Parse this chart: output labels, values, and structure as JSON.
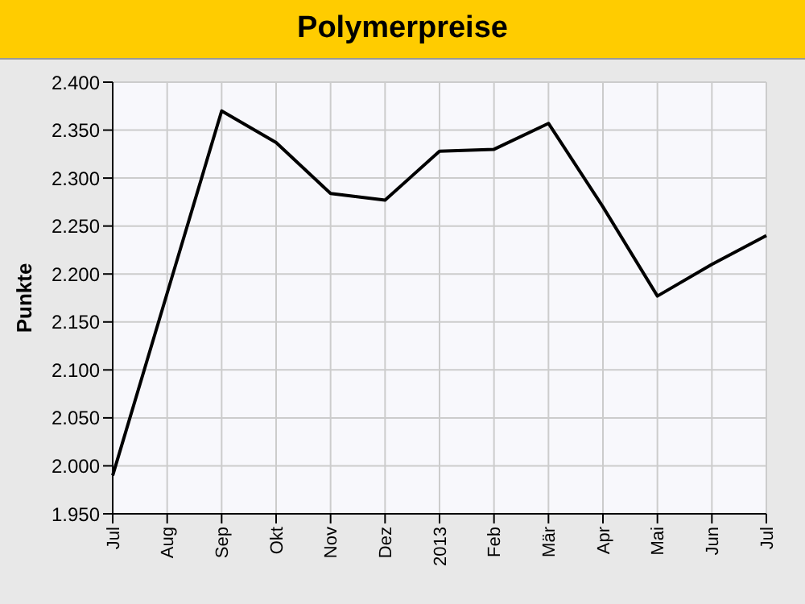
{
  "chart_data": {
    "type": "line",
    "title": "Polymerpreise",
    "ylabel": "Punkte",
    "categories": [
      "Jul",
      "Aug",
      "Sep",
      "Okt",
      "Nov",
      "Dez",
      "2013",
      "Feb",
      "Mär",
      "Apr",
      "Mai",
      "Jun",
      "Jul"
    ],
    "series": [
      {
        "color": "#000000",
        "values": [
          1990,
          2180,
          2370,
          2337,
          2284,
          2277,
          2328,
          2330,
          2357,
          2270,
          2177,
          2210,
          2240
        ]
      }
    ],
    "ylim": [
      1950,
      2400
    ],
    "yticks": [
      {
        "value": 1950,
        "label": "1.950"
      },
      {
        "value": 2000,
        "label": "2.000"
      },
      {
        "value": 2050,
        "label": "2.050"
      },
      {
        "value": 2100,
        "label": "2.100"
      },
      {
        "value": 2150,
        "label": "2.150"
      },
      {
        "value": 2200,
        "label": "2.200"
      },
      {
        "value": 2250,
        "label": "2.250"
      },
      {
        "value": 2300,
        "label": "2.300"
      },
      {
        "value": 2350,
        "label": "2.350"
      },
      {
        "value": 2400,
        "label": "2.400"
      }
    ],
    "grid": true,
    "legend": false,
    "marker": "none",
    "line_style": "solid"
  }
}
